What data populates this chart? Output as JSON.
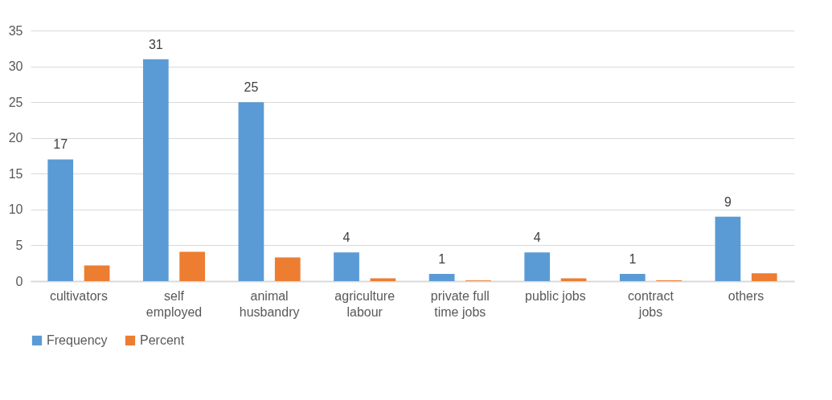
{
  "chart_data": {
    "type": "bar",
    "categories": [
      "cultivators",
      "self employed",
      "animal husbandry",
      "agriculture labour",
      "private full time jobs",
      "public jobs",
      "contract jobs",
      "others"
    ],
    "series": [
      {
        "name": "Frequency",
        "color": "#5b9bd5",
        "values": [
          17,
          31,
          25,
          4,
          1,
          4,
          1,
          9
        ],
        "value_labels": [
          "17",
          "31",
          "25",
          "4",
          "1",
          "4",
          "1",
          "9"
        ]
      },
      {
        "name": "Percent",
        "color": "#ed7d31",
        "values": [
          2.2,
          4.1,
          3.3,
          0.4,
          0.1,
          0.4,
          0.1,
          1.1
        ]
      }
    ],
    "ylim": [
      0,
      35
    ],
    "yticks": [
      0,
      5,
      10,
      15,
      20,
      25,
      30,
      35
    ],
    "grid": "y",
    "legend": "bottom"
  }
}
